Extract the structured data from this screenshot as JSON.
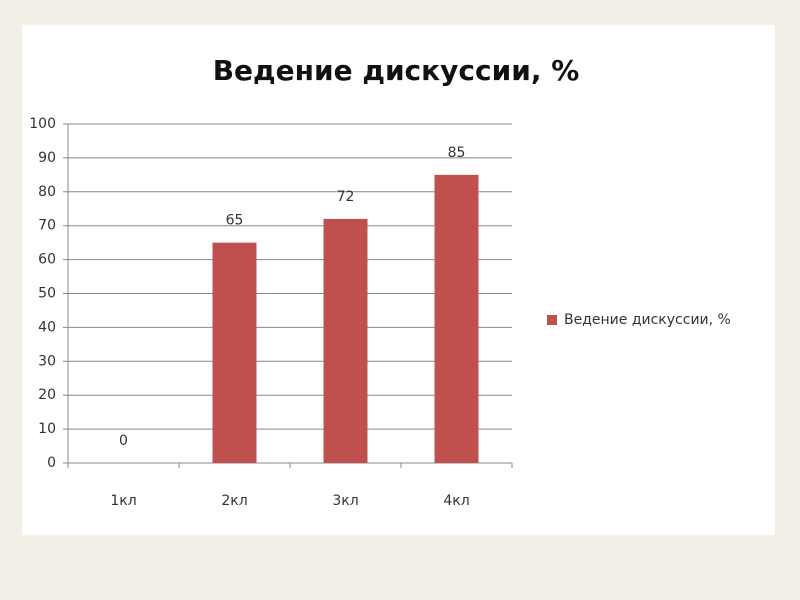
{
  "chart_data": {
    "type": "bar",
    "title": "Ведение дискуссии, %",
    "categories": [
      "1кл",
      "2кл",
      "3кл",
      "4кл"
    ],
    "series": [
      {
        "name": "Ведение дискуссии, %",
        "color": "#c0504d",
        "values": [
          0,
          65,
          72,
          85
        ]
      }
    ],
    "ylim": [
      0,
      100
    ],
    "yticks": [
      0,
      10,
      20,
      30,
      40,
      50,
      60,
      70,
      80,
      90,
      100
    ],
    "grid": true,
    "legend": "right",
    "data_labels": true
  }
}
